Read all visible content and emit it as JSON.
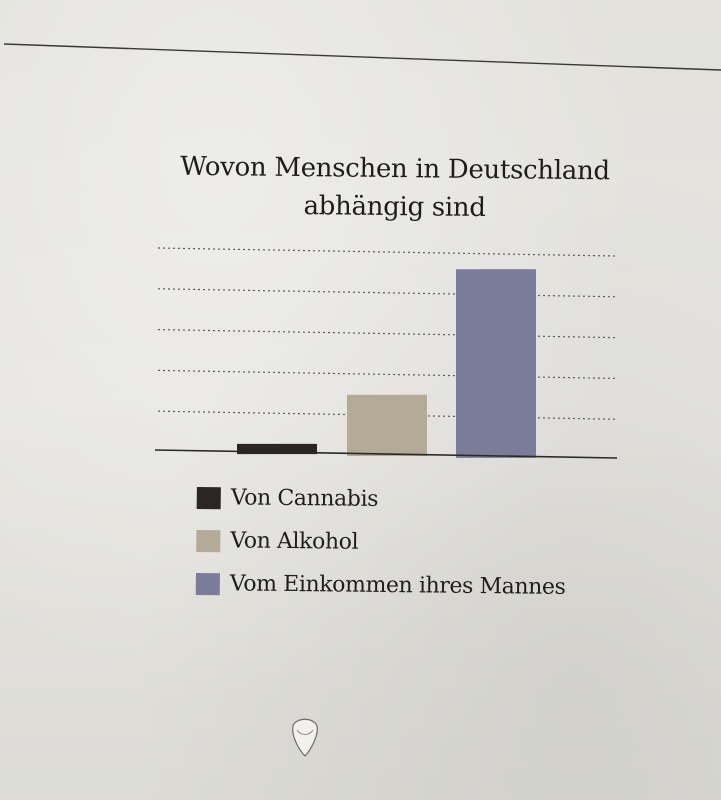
{
  "chart_data": {
    "type": "bar",
    "title": "Wovon Menschen in Deutschland abhängig sind",
    "title_lines": [
      "Wovon Menschen in Deutschland",
      "abhängig sind"
    ],
    "categories": [
      "Von Cannabis",
      "Von Alkohol",
      "Vom Einkommen ihres Mannes"
    ],
    "values": [
      1,
      6,
      18.5
    ],
    "ylim": [
      0,
      20
    ],
    "grid": true,
    "ticks_labeled": false,
    "legend_placement": "bottom",
    "colors": [
      "#2b2624",
      "#b3aa98",
      "#7b7c9a"
    ]
  }
}
